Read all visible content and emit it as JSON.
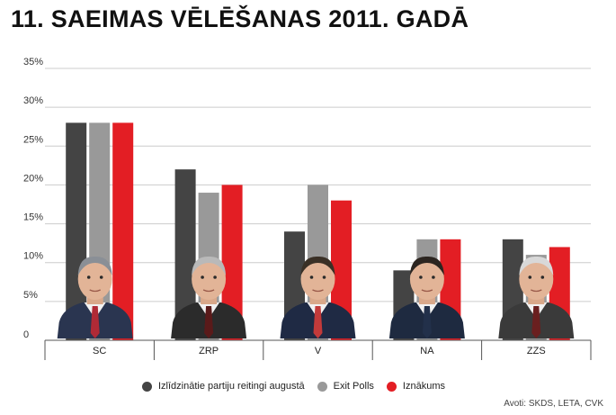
{
  "title": "11. SAEIMAS VĒLĒŠANAS 2011. GADĀ",
  "source": "Avoti: SKDS, LETA, CVK",
  "colors": {
    "rating": "#444444",
    "exit": "#999999",
    "result": "#e31e24",
    "grid": "#cccccc",
    "axis": "#555555"
  },
  "legend": [
    {
      "label": "Izlīdzinātie partiju reitingi augustā",
      "color": "#444444"
    },
    {
      "label": "Exit Polls",
      "color": "#999999"
    },
    {
      "label": "Iznākums",
      "color": "#e31e24"
    }
  ],
  "chart_data": {
    "type": "bar",
    "title": "11. SAEIMAS VĒLĒŠANAS 2011. GADĀ",
    "categories": [
      "SC",
      "ZRP",
      "V",
      "NA",
      "ZZS"
    ],
    "series": [
      {
        "name": "Izlīdzinātie partiju reitingi augustā",
        "color": "#444444",
        "values": [
          28,
          22,
          14,
          9,
          13
        ]
      },
      {
        "name": "Exit Polls",
        "color": "#999999",
        "values": [
          28,
          19,
          20,
          13,
          11
        ]
      },
      {
        "name": "Iznākums",
        "color": "#e31e24",
        "values": [
          28,
          20,
          18,
          13,
          12
        ]
      }
    ],
    "y_ticks": [
      "0",
      "5%",
      "10%",
      "15%",
      "20%",
      "25%",
      "30%",
      "35%"
    ],
    "y_tick_values": [
      0,
      5,
      10,
      15,
      20,
      25,
      30,
      35
    ],
    "ylim": [
      0,
      35
    ],
    "grid": true,
    "legend_position": "bottom",
    "xlabel": "",
    "ylabel": ""
  },
  "portraits": [
    {
      "category": "SC",
      "icon": "person-portrait-icon",
      "suit": "#2a3550",
      "tie": "#b02a36",
      "hair": "#8a8f96"
    },
    {
      "category": "ZRP",
      "icon": "person-portrait-icon",
      "suit": "#2b2b2b",
      "tie": "#5a1a1a",
      "hair": "#b9b9b9"
    },
    {
      "category": "V",
      "icon": "person-portrait-icon",
      "suit": "#1f2a44",
      "tie": "#c23a3a",
      "hair": "#3a3026"
    },
    {
      "category": "NA",
      "icon": "person-portrait-icon",
      "suit": "#1e2a40",
      "tie": "#22304a",
      "hair": "#2c2520"
    },
    {
      "category": "ZZS",
      "icon": "person-portrait-icon",
      "suit": "#3a3a3a",
      "tie": "#6a1f1f",
      "hair": "#d8d8d8"
    }
  ]
}
